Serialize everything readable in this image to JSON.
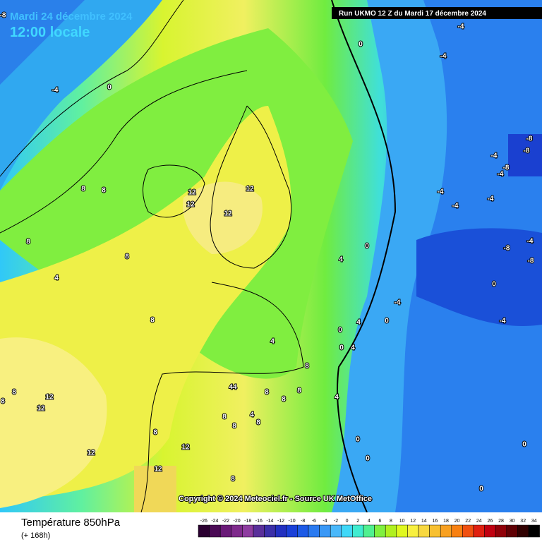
{
  "header": {
    "date": "Mardi 24 décembre 2024",
    "time": "12:00 locale",
    "run": "Run UKMO 12 Z du Mardi 17 décembre 2024"
  },
  "map": {
    "contour_labels": [
      "-8",
      "-4",
      "0",
      "8",
      "8",
      "12",
      "12",
      "12",
      "12",
      "8",
      "8",
      "4",
      "8",
      "4",
      "8",
      "4",
      "0",
      "44",
      "8",
      "8",
      "8",
      "4",
      "8",
      "8",
      "8",
      "8",
      "12",
      "12",
      "8",
      "8",
      "12",
      "12",
      "12",
      "8",
      "0",
      "0",
      "4",
      "-4",
      "0",
      "-4",
      "-8",
      "-8",
      "-4",
      "-8",
      "-4",
      "-4",
      "-4",
      "-4",
      "-8",
      "-4",
      "-8",
      "0",
      "-4",
      "0",
      "0",
      "4",
      "4",
      "0",
      "-4",
      "0",
      "0"
    ],
    "copyright": "Copyright © 2024 Meteociel.fr - Source UK MetOffice"
  },
  "footer": {
    "title": "Température 850hPa",
    "lead": "(+ 168h)"
  },
  "scale": {
    "labels": [
      -26,
      -24,
      -22,
      -20,
      -18,
      -16,
      -14,
      -12,
      -10,
      -8,
      -6,
      -4,
      -2,
      0,
      2,
      4,
      6,
      8,
      10,
      12,
      14,
      16,
      18,
      20,
      22,
      24,
      26,
      28,
      30,
      32,
      34
    ],
    "colors": [
      "#2a0030",
      "#4a0a55",
      "#6a1a78",
      "#7f2a8c",
      "#8e3ca0",
      "#5a2f9a",
      "#3b2fa8",
      "#2230c0",
      "#1a40d8",
      "#1d5ae6",
      "#2a7af0",
      "#3a98f6",
      "#4ab8fa",
      "#40d8f8",
      "#40ecd0",
      "#50f090",
      "#80f040",
      "#b0f020",
      "#e0f820",
      "#f8f040",
      "#f8d840",
      "#f8c030",
      "#f8a020",
      "#f88010",
      "#f05010",
      "#e02010",
      "#c00010",
      "#900008",
      "#600004",
      "#300000",
      "#000000"
    ]
  }
}
